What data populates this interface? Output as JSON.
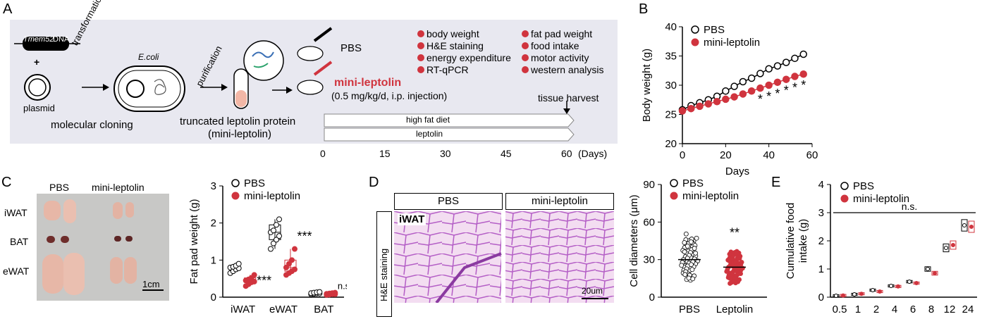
{
  "panel_labels": {
    "a": "A",
    "b": "B",
    "c": "C",
    "d": "D",
    "e": "E"
  },
  "panel_a": {
    "gene_label": "Tmem52",
    "dna_label": "DNA",
    "plus_sign": "+",
    "plasmid_label": "plasmid",
    "transformation_label": "transformation",
    "ecoli_label": "E.coli",
    "purification_label": "purification",
    "molecular_cloning_label": "molecular cloning",
    "protein_label_line1": "truncated leptolin protein",
    "protein_label_line2": "(mini-leptolin)",
    "pbs_label": "PBS",
    "mini_leptolin_label": "mini-leptolin",
    "dose_label": "(0.5 mg/kg/d, i.p. injection)",
    "assays_col1": [
      "body weight",
      "H&E staining",
      "energy expenditure",
      "RT-qPCR"
    ],
    "assays_col2": [
      "fat pad weight",
      "food intake",
      "motor activity",
      "western analysis"
    ],
    "tissue_harvest_label": "tissue harvest",
    "bar1_label": "high fat diet",
    "bar2_label": "leptolin",
    "timeline_ticks": [
      "0",
      "15",
      "30",
      "45",
      "60"
    ],
    "timeline_unit": "(Days)"
  },
  "panel_c_photo": {
    "col_labels": [
      "PBS",
      "mini-leptolin"
    ],
    "row_labels": [
      "iWAT",
      "BAT",
      "eWAT"
    ],
    "scale_label": "1cm"
  },
  "panel_d_micro": {
    "col_labels": [
      "PBS",
      "mini-leptolin"
    ],
    "side_label": "H&E staining",
    "tissue_label": "iWAT",
    "scale_label": "20um"
  },
  "colors": {
    "pbs": "#ffffff",
    "treated": "#d0343e",
    "panel_bg": "#e8e8f0",
    "axis": "#000000"
  },
  "chart_data": [
    {
      "id": "B",
      "type": "line",
      "xlabel": "Days",
      "ylabel": "Body weight (g)",
      "xlim": [
        0,
        60
      ],
      "ylim": [
        20,
        40
      ],
      "xticks": [
        "0",
        "20",
        "40",
        "60"
      ],
      "yticks": [
        "20",
        "25",
        "30",
        "35",
        "40"
      ],
      "series": [
        {
          "name": "PBS",
          "x": [
            0,
            4,
            8,
            12,
            16,
            20,
            24,
            28,
            32,
            36,
            40,
            44,
            48,
            52,
            56
          ],
          "y": [
            25.8,
            26.5,
            27.0,
            27.5,
            28.1,
            29.0,
            29.8,
            30.6,
            31.2,
            32.0,
            32.8,
            33.3,
            33.9,
            34.6,
            35.3
          ]
        },
        {
          "name": "mini-leptolin",
          "x": [
            0,
            4,
            8,
            12,
            16,
            20,
            24,
            28,
            32,
            36,
            40,
            44,
            48,
            52,
            56
          ],
          "y": [
            25.6,
            26.0,
            26.4,
            26.8,
            27.2,
            27.6,
            28.0,
            28.5,
            29.0,
            29.5,
            30.0,
            30.5,
            31.0,
            31.5,
            31.9
          ]
        }
      ],
      "significance_markers": [
        "*",
        "*",
        "*",
        "*",
        "*",
        "*"
      ]
    },
    {
      "id": "C",
      "type": "scatter",
      "ylabel": "Fat pad weight (g)",
      "ylim": [
        0,
        3
      ],
      "yticks": [
        "0",
        "1",
        "2",
        "3"
      ],
      "categories": [
        "iWAT",
        "eWAT",
        "BAT"
      ],
      "series": [
        {
          "name": "PBS",
          "values": [
            [
              0.65,
              0.7,
              0.75,
              0.78,
              0.8,
              0.82,
              0.85,
              0.9
            ],
            [
              1.3,
              1.45,
              1.55,
              1.65,
              1.75,
              1.8,
              1.95,
              2.1
            ],
            [
              0.08,
              0.09,
              0.1,
              0.1,
              0.11,
              0.12,
              0.13,
              0.14
            ]
          ]
        },
        {
          "name": "mini-leptolin",
          "values": [
            [
              0.3,
              0.35,
              0.4,
              0.42,
              0.45,
              0.48,
              0.52,
              0.6
            ],
            [
              0.6,
              0.65,
              0.7,
              0.75,
              0.8,
              0.9,
              1.0,
              1.3
            ],
            [
              0.06,
              0.07,
              0.08,
              0.08,
              0.09,
              0.1,
              0.11,
              0.12
            ]
          ]
        }
      ],
      "annotations": [
        "***",
        "***",
        "n.s."
      ]
    },
    {
      "id": "D",
      "type": "scatter",
      "ylabel": "Cell diameters (μm)",
      "ylim": [
        0,
        90
      ],
      "yticks": [
        "0",
        "30",
        "60",
        "90"
      ],
      "categories": [
        "PBS",
        "Leptolin"
      ],
      "series": [
        {
          "name": "PBS",
          "mean": 30
        },
        {
          "name": "mini-leptolin",
          "mean": 24
        }
      ],
      "annotations": [
        "**"
      ]
    },
    {
      "id": "E",
      "type": "scatter",
      "ylabel_line1": "Cumulative food",
      "ylabel_line2": "intake (g)",
      "ylim": [
        0,
        4
      ],
      "yticks": [
        "0",
        "1",
        "2",
        "3",
        "4"
      ],
      "categories": [
        "0.5",
        "1",
        "2",
        "4",
        "6",
        "8",
        "12",
        "24"
      ],
      "series": [
        {
          "name": "PBS",
          "values": [
            0.05,
            0.1,
            0.25,
            0.4,
            0.55,
            1.0,
            1.75,
            2.55
          ]
        },
        {
          "name": "mini-leptolin",
          "values": [
            0.06,
            0.12,
            0.2,
            0.38,
            0.5,
            0.85,
            1.85,
            2.5
          ]
        }
      ],
      "annotations": [
        "n.s."
      ]
    }
  ]
}
